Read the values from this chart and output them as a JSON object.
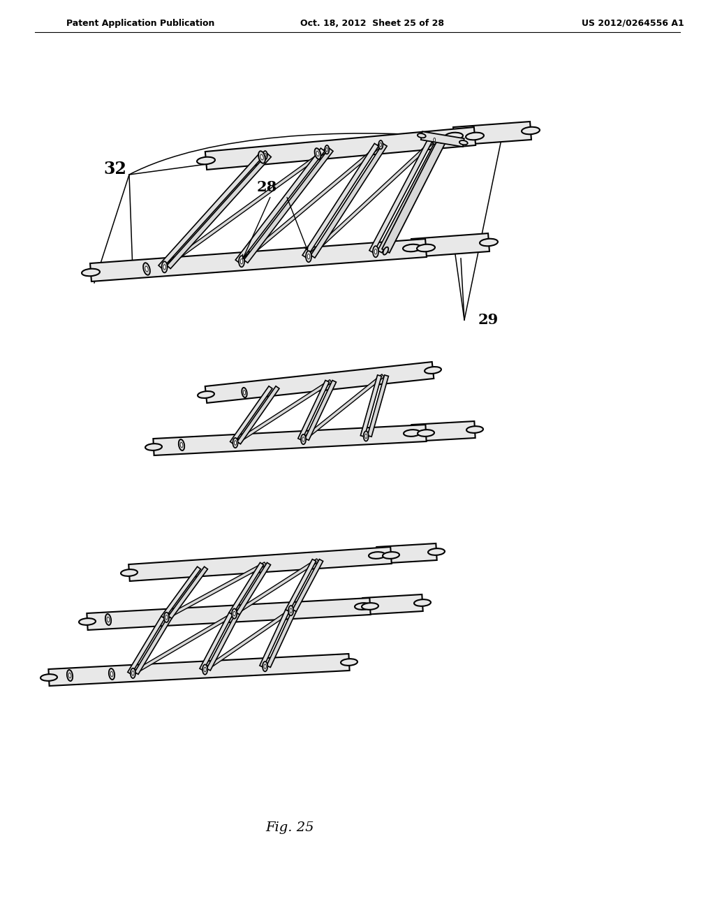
{
  "bg_color": "#ffffff",
  "header_left": "Patent Application Publication",
  "header_center": "Oct. 18, 2012  Sheet 25 of 28",
  "header_right": "US 2012/0264556 A1",
  "fig_label": "Fig. 25",
  "label_32": "32",
  "label_28": "28",
  "label_29": "29",
  "line_color": "#000000",
  "rod_fill": "#e0e0e0",
  "rod_edge": "#000000",
  "dark_fill": "#c0c0c0",
  "stroke_width": 1.3
}
